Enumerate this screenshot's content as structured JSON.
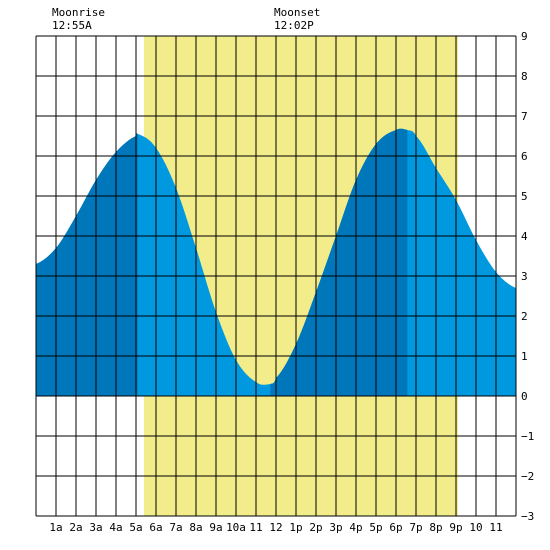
{
  "chart_data": {
    "type": "area",
    "title": "",
    "xlabel": "",
    "ylabel": "",
    "xlim": [
      0,
      24
    ],
    "ylim": [
      -3,
      9
    ],
    "x_tick_labels": [
      "1a",
      "2a",
      "3a",
      "4a",
      "5a",
      "6a",
      "7a",
      "8a",
      "9a",
      "10a",
      "11",
      "12",
      "1p",
      "2p",
      "3p",
      "4p",
      "5p",
      "6p",
      "7p",
      "8p",
      "9p",
      "10",
      "11"
    ],
    "y_tick_labels": [
      "9",
      "8",
      "7",
      "6",
      "5",
      "4",
      "3",
      "2",
      "1",
      "0",
      "−1",
      "−2",
      "−3"
    ],
    "annotations": [
      {
        "label": "Moonrise",
        "time": "12:55A"
      },
      {
        "label": "Moonset",
        "time": "12:02P"
      }
    ],
    "daylight_hours": [
      5.4,
      21.1
    ],
    "tide_series": {
      "name": "",
      "x": [
        0,
        1,
        2,
        3,
        4,
        5,
        5.08,
        6,
        7,
        8,
        9,
        10,
        11,
        11.72,
        12,
        13,
        14,
        15,
        16,
        17,
        18,
        18.57,
        19,
        20,
        21,
        22,
        23,
        24
      ],
      "y": [
        3.3,
        3.7,
        4.5,
        5.4,
        6.1,
        6.5,
        6.55,
        6.2,
        5.2,
        3.7,
        2.1,
        0.9,
        0.35,
        0.3,
        0.45,
        1.3,
        2.6,
        4.0,
        5.4,
        6.3,
        6.65,
        6.65,
        6.5,
        5.7,
        4.9,
        3.9,
        3.1,
        2.7
      ]
    },
    "shaded_regions": [
      [
        0,
        5.08
      ],
      [
        11.72,
        18.57
      ]
    ],
    "colors": {
      "daylight": "#f2ec8a",
      "tide": "#0099e0",
      "tide_shade": "#0077bb",
      "grid": "#000000",
      "background": "#ffffff"
    }
  }
}
